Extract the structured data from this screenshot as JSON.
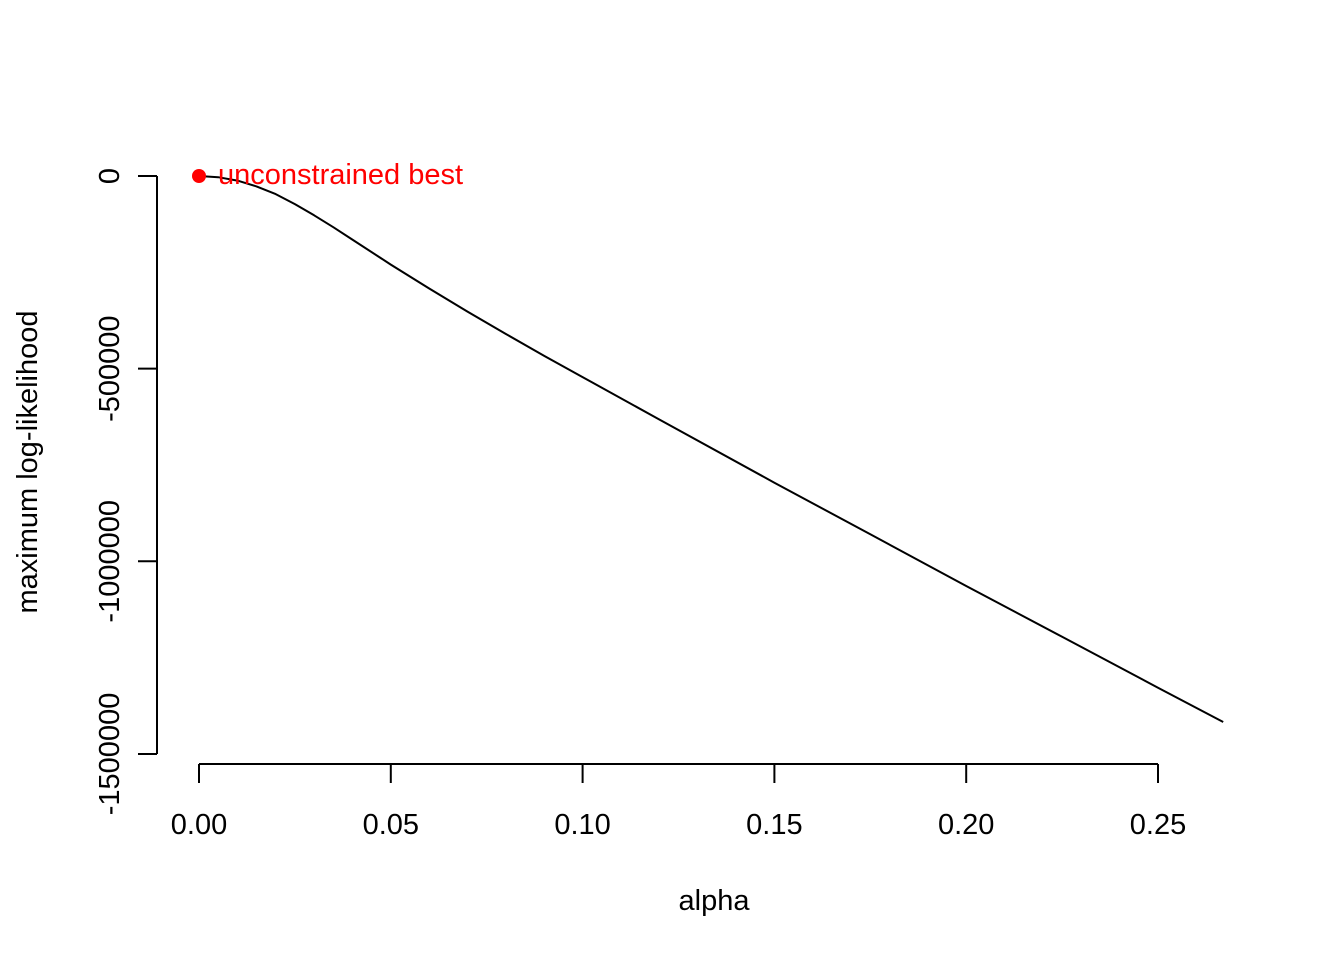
{
  "chart_data": {
    "type": "line",
    "title": "",
    "xlabel": "alpha",
    "ylabel": "maximum log-likelihood",
    "xlim": [
      0,
      0.267
    ],
    "ylim": [
      -1500000,
      0
    ],
    "x_ticks": [
      0.0,
      0.05,
      0.1,
      0.15,
      0.2,
      0.25
    ],
    "x_tick_labels": [
      "0.00",
      "0.05",
      "0.10",
      "0.15",
      "0.20",
      "0.25"
    ],
    "y_ticks": [
      0,
      -500000,
      -1000000,
      -1500000
    ],
    "y_tick_labels": [
      "0",
      "-500000",
      "-1000000",
      "-1500000"
    ],
    "grid": false,
    "series": [
      {
        "x": [
          0.0,
          0.005,
          0.01,
          0.015,
          0.02,
          0.025,
          0.03,
          0.035,
          0.04,
          0.05,
          0.06,
          0.07,
          0.08,
          0.09,
          0.1,
          0.12,
          0.15,
          0.175,
          0.2,
          0.225,
          0.25,
          0.267
        ],
        "y": [
          0,
          -3000,
          -12000,
          -27000,
          -47000,
          -73000,
          -102000,
          -133000,
          -165000,
          -230000,
          -292000,
          -352000,
          -410000,
          -467000,
          -522000,
          -632000,
          -796000,
          -930000,
          -1064000,
          -1196000,
          -1328000,
          -1417000
        ],
        "color": "#000000"
      }
    ],
    "annotations": [
      {
        "x": 0.0,
        "y": 0,
        "label": "unconstrained best",
        "color": "#ff0000"
      }
    ]
  }
}
